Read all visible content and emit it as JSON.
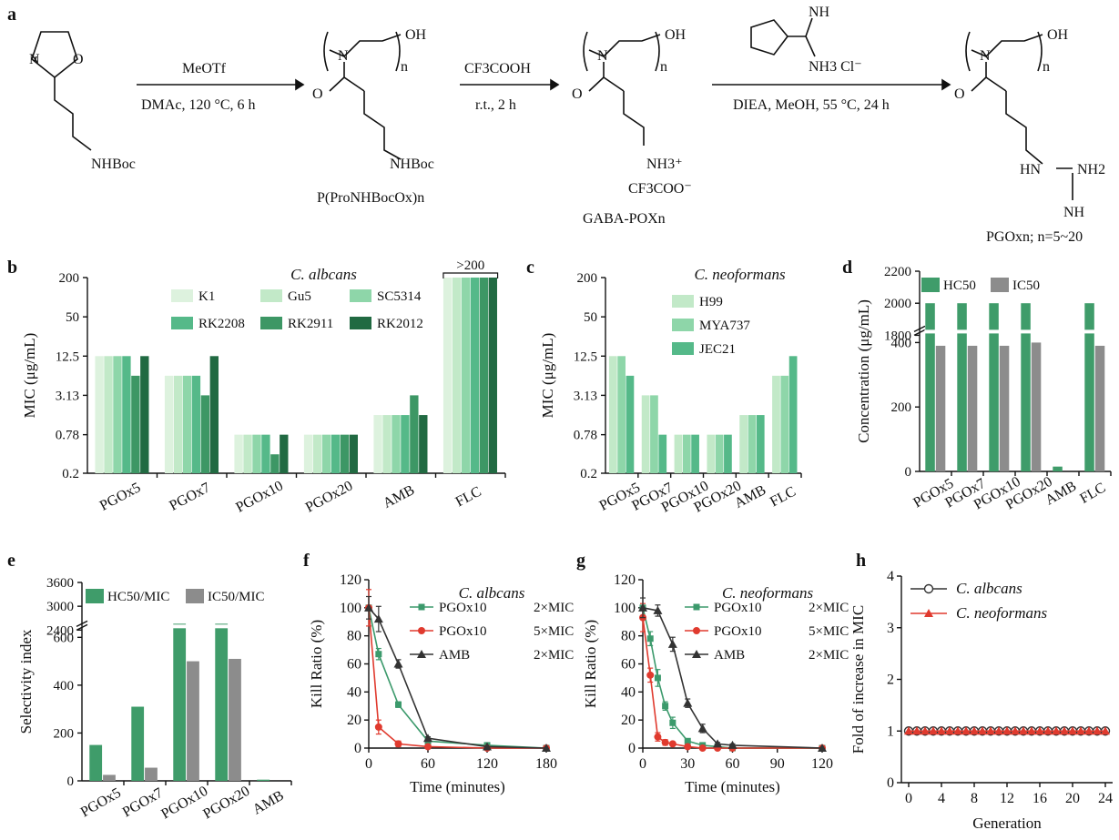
{
  "colors": {
    "k1": "#ddf2de",
    "gu5": "#c2e9c8",
    "sc5314": "#8ed6a9",
    "rk2208": "#55b989",
    "rk2911": "#3d9765",
    "rk2012": "#216a42",
    "hc50": "#3f9c6a",
    "ic50": "#8c8c8c",
    "green_line": "#3c9a6c",
    "red_line": "#e03a2e",
    "black_line": "#333333"
  },
  "panel_a": {
    "label": "a",
    "reagent1_top": "MeOTf",
    "reagent1_bottom": "DMAc, 120 °C, 6 h",
    "reagent2_top": "CF3COOH",
    "reagent2_bottom": "r.t., 2 h",
    "reagent3_bottom": "DIEA, MeOH, 55 °C, 24 h",
    "reagent3_salt": "NH3  Cl⁻",
    "reagent3_nh": "NH",
    "monomer_sub": "NHBoc",
    "polymer1_sub": "NHBoc",
    "polymer1_name": "P(ProNHBocOx)n",
    "polymer2_sub1": "NH3⁺",
    "polymer2_sub2": "CF3COO⁻",
    "polymer2_name": "GABA-POXn",
    "polymer3_hn": "HN",
    "polymer3_nh2": "NH2",
    "polymer3_nh": "NH",
    "polymer3_name": "PGOxn; n=5~20",
    "oh": "OH",
    "n": "n",
    "N": "N",
    "O": "O"
  },
  "chart_data": [
    {
      "panel": "b",
      "type": "bar",
      "title": "C. albcans",
      "ylabel": "MIC (μg/mL)",
      "yscale": "log",
      "yticks": [
        "0.2",
        "0.78",
        "3.13",
        "12.5",
        "50",
        "200"
      ],
      "categories": [
        "PGOx5",
        "PGOx7",
        "PGOx10",
        "PGOx20",
        "AMB",
        "FLC"
      ],
      "annotation": ">200",
      "series": [
        {
          "name": "K1",
          "values": [
            12.5,
            6.25,
            0.78,
            0.78,
            1.56,
            200
          ]
        },
        {
          "name": "Gu5",
          "values": [
            12.5,
            6.25,
            0.78,
            0.78,
            1.56,
            200
          ]
        },
        {
          "name": "SC5314",
          "values": [
            12.5,
            6.25,
            0.78,
            0.78,
            1.56,
            200
          ]
        },
        {
          "name": "RK2208",
          "values": [
            12.5,
            6.25,
            0.78,
            0.78,
            1.56,
            200
          ]
        },
        {
          "name": "RK2911",
          "values": [
            6.25,
            3.13,
            0.39,
            0.78,
            3.13,
            200
          ]
        },
        {
          "name": "RK2012",
          "values": [
            12.5,
            12.5,
            0.78,
            0.78,
            1.56,
            200
          ]
        }
      ]
    },
    {
      "panel": "c",
      "type": "bar",
      "title": "C. neoformans",
      "ylabel": "MIC (μg/mL)",
      "yscale": "log",
      "yticks": [
        "0.2",
        "0.78",
        "3.13",
        "12.5",
        "50",
        "200"
      ],
      "categories": [
        "PGOx5",
        "PGOx7",
        "PGOx10",
        "PGOx20",
        "AMB",
        "FLC"
      ],
      "series": [
        {
          "name": "H99",
          "values": [
            12.5,
            3.13,
            0.78,
            0.78,
            1.56,
            6.25
          ]
        },
        {
          "name": "MYA737",
          "values": [
            12.5,
            3.13,
            0.78,
            0.78,
            1.56,
            6.25
          ]
        },
        {
          "name": "JEC21",
          "values": [
            6.25,
            0.78,
            0.78,
            0.78,
            1.56,
            12.5
          ]
        }
      ]
    },
    {
      "panel": "d",
      "type": "bar",
      "ylabel": "Concentration (μg/mL)",
      "axis_break": true,
      "yticks_lower": [
        "0",
        "200",
        "400"
      ],
      "yticks_upper": [
        "1800",
        "2000",
        "2200"
      ],
      "categories": [
        "PGOx5",
        "PGOx7",
        "PGOx10",
        "PGOx20",
        "AMB",
        "FLC"
      ],
      "series": [
        {
          "name": "HC50",
          "values": [
            2000,
            2000,
            2000,
            2000,
            15,
            2000
          ]
        },
        {
          "name": "IC50",
          "values": [
            390,
            390,
            390,
            400,
            0,
            390
          ]
        }
      ]
    },
    {
      "panel": "e",
      "type": "bar",
      "ylabel": "Selectivity index",
      "axis_break": true,
      "yticks_lower": [
        "0",
        "200",
        "400",
        "600"
      ],
      "yticks_upper": [
        "2400",
        "3000",
        "3600"
      ],
      "categories": [
        "PGOx5",
        "PGOx7",
        "PGOx10",
        "PGOx20",
        "AMB"
      ],
      "series": [
        {
          "name": "HC50/MIC",
          "values": [
            150,
            310,
            2560,
            2560,
            5
          ]
        },
        {
          "name": "IC50/MIC",
          "values": [
            25,
            55,
            500,
            510,
            0
          ]
        }
      ]
    },
    {
      "panel": "f",
      "type": "line",
      "title": "C. albcans",
      "xlabel": "Time (minutes)",
      "ylabel": "Kill Ratio (%)",
      "xlim": [
        0,
        180
      ],
      "ylim": [
        0,
        120
      ],
      "xticks": [
        "0",
        "60",
        "120",
        "180"
      ],
      "yticks": [
        "0",
        "20",
        "40",
        "60",
        "80",
        "100",
        "120"
      ],
      "series": [
        {
          "name": "PGOx10 2×MIC",
          "x": [
            0,
            10,
            30,
            60,
            120,
            180
          ],
          "y": [
            100,
            67,
            31,
            5,
            2,
            0
          ],
          "err": [
            0,
            4,
            2,
            1,
            1,
            0
          ]
        },
        {
          "name": "PGOx10 5×MIC",
          "x": [
            0,
            10,
            30,
            60,
            120,
            180
          ],
          "y": [
            100,
            15,
            3,
            1,
            0,
            0
          ],
          "err": [
            13,
            5,
            2,
            1,
            0,
            0
          ]
        },
        {
          "name": "AMB 2×MIC",
          "x": [
            0,
            10,
            30,
            60,
            120,
            180
          ],
          "y": [
            100,
            92,
            60,
            7,
            1,
            0
          ],
          "err": [
            8,
            9,
            3,
            1,
            0,
            0
          ]
        }
      ]
    },
    {
      "panel": "g",
      "type": "line",
      "title": "C. neoformans",
      "xlabel": "Time (minutes)",
      "ylabel": "Kill Ratio (%)",
      "xlim": [
        0,
        120
      ],
      "ylim": [
        0,
        120
      ],
      "xticks": [
        "0",
        "30",
        "60",
        "90",
        "120"
      ],
      "yticks": [
        "0",
        "20",
        "40",
        "60",
        "80",
        "100",
        "120"
      ],
      "series": [
        {
          "name": "PGOx10 2×MIC",
          "x": [
            0,
            5,
            10,
            15,
            20,
            30,
            40,
            50,
            60,
            120
          ],
          "y": [
            100,
            78,
            50,
            30,
            18,
            5,
            2,
            1,
            0,
            0
          ],
          "err": [
            0,
            5,
            6,
            3,
            4,
            1,
            1,
            0,
            0,
            0
          ]
        },
        {
          "name": "PGOx10 5×MIC",
          "x": [
            0,
            5,
            10,
            15,
            20,
            30,
            40,
            50,
            60,
            120
          ],
          "y": [
            93,
            52,
            8,
            4,
            3,
            1,
            0,
            0,
            0,
            0
          ],
          "err": [
            10,
            5,
            3,
            2,
            1,
            1,
            0,
            0,
            0,
            0
          ]
        },
        {
          "name": "AMB 2×MIC",
          "x": [
            0,
            10,
            20,
            30,
            40,
            50,
            60,
            120
          ],
          "y": [
            100,
            98,
            74,
            32,
            14,
            3,
            2,
            0
          ],
          "err": [
            7,
            4,
            5,
            3,
            3,
            1,
            1,
            0
          ]
        }
      ]
    },
    {
      "panel": "h",
      "type": "line",
      "xlabel": "Generation",
      "ylabel": "Fold of increase in MIC",
      "xlim": [
        0,
        24
      ],
      "ylim": [
        0,
        4
      ],
      "xticks": [
        "0",
        "4",
        "8",
        "12",
        "16",
        "20",
        "24"
      ],
      "yticks": [
        "0",
        "1",
        "2",
        "3",
        "4"
      ],
      "series": [
        {
          "name": "C. albcans",
          "x": [
            0,
            1,
            2,
            3,
            4,
            5,
            6,
            7,
            8,
            9,
            10,
            11,
            12,
            13,
            14,
            15,
            16,
            17,
            18,
            19,
            20,
            21,
            22,
            23,
            24
          ],
          "y": [
            1,
            1,
            1,
            1,
            1,
            1,
            1,
            1,
            1,
            1,
            1,
            1,
            1,
            1,
            1,
            1,
            1,
            1,
            1,
            1,
            1,
            1,
            1,
            1,
            1
          ]
        },
        {
          "name": "C. neoformans",
          "x": [
            0,
            1,
            2,
            3,
            4,
            5,
            6,
            7,
            8,
            9,
            10,
            11,
            12,
            13,
            14,
            15,
            16,
            17,
            18,
            19,
            20,
            21,
            22,
            23,
            24
          ],
          "y": [
            1,
            1,
            1,
            1,
            1,
            1,
            1,
            1,
            1,
            1,
            1,
            1,
            1,
            1,
            1,
            1,
            1,
            1,
            1,
            1,
            1,
            1,
            1,
            1,
            1
          ]
        }
      ]
    }
  ]
}
